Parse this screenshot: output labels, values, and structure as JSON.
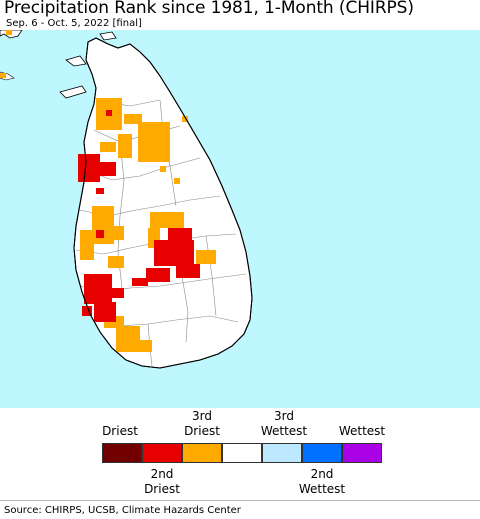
{
  "header": {
    "title": "Precipitation Rank since 1981, 1-Month (CHIRPS)",
    "subtitle": "Sep. 6 - Oct. 5, 2022 [final]"
  },
  "map": {
    "region": "Sri Lanka",
    "ocean_color": "#bff7ff",
    "land_color": "#ffffff",
    "highlighted_regions": [
      {
        "area": "north-west coast (Puttalam/Mannar)",
        "rank_category": "3rd Driest"
      },
      {
        "area": "west coast (Colombo/Kalutara)",
        "rank_category": "2nd Driest"
      },
      {
        "area": "central highlands (Badulla/Kandy)",
        "rank_category": "2nd Driest"
      },
      {
        "area": "south-west coast (Galle)",
        "rank_category": "3rd Driest"
      }
    ]
  },
  "legend": {
    "top_labels": [
      "Driest",
      "3rd\nDriest",
      "3rd\nWettest",
      "Wettest"
    ],
    "bottom_labels": [
      "2nd\nDriest",
      "2nd\nWettest"
    ],
    "classes": [
      {
        "name": "Driest",
        "color": "#730000"
      },
      {
        "name": "2nd Driest",
        "color": "#e60000"
      },
      {
        "name": "3rd Driest",
        "color": "#ffaa00"
      },
      {
        "name": "Normal",
        "color": "#ffffff"
      },
      {
        "name": "3rd Wettest",
        "color": "#bee8ff"
      },
      {
        "name": "2nd Wettest",
        "color": "#0070ff"
      },
      {
        "name": "Wettest",
        "color": "#a900e6"
      }
    ]
  },
  "footer": {
    "source": "Source: CHIRPS, UCSB, Climate Hazards Center"
  }
}
